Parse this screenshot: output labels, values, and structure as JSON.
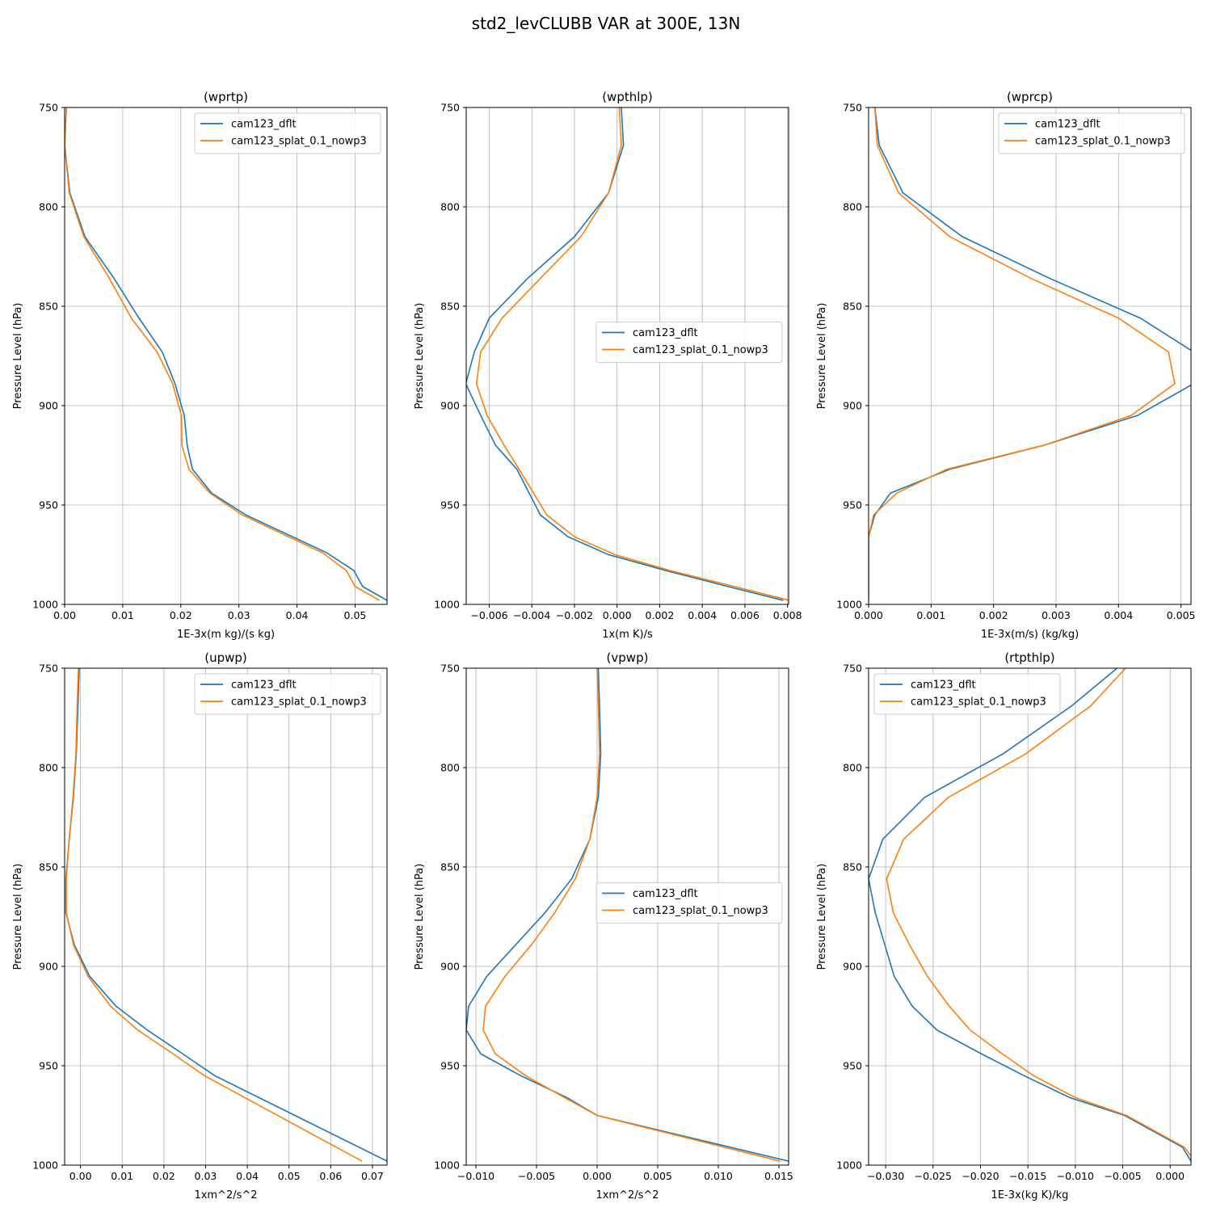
{
  "figure": {
    "suptitle": "std2_levCLUBB VAR at 300E, 13N"
  },
  "colors": {
    "cam123_dflt": "#1f77b4",
    "cam123_splat_0.1_nowp3": "#ff7f0e",
    "grid": "#b0b0b0"
  },
  "chart_data": [
    {
      "type": "line",
      "title": "(wprtp)",
      "xlabel": "1E-3x(m kg)/(s kg)",
      "ylabel": "Pressure Level (hPa)",
      "xlim": [
        0.0,
        0.0555
      ],
      "ylim": [
        1000,
        750
      ],
      "xticks": [
        0.0,
        0.01,
        0.02,
        0.03,
        0.04,
        0.05
      ],
      "xtick_labels": [
        "0.00",
        "0.01",
        "0.02",
        "0.03",
        "0.04",
        "0.05"
      ],
      "yticks": [
        750,
        800,
        850,
        900,
        950,
        1000
      ],
      "ytick_labels": [
        "750",
        "800",
        "850",
        "900",
        "950",
        "1000"
      ],
      "legend_loc": "upper right",
      "grid": true,
      "series": [
        {
          "name": "cam123_dflt",
          "x": [
            0.0003,
            0.0,
            0.0009,
            0.0035,
            0.0085,
            0.0128,
            0.0168,
            0.019,
            0.0206,
            0.0211,
            0.022,
            0.0253,
            0.0312,
            0.0451,
            0.0498,
            0.0513,
            0.0555
          ],
          "y": [
            750,
            769,
            793,
            815,
            836,
            856,
            873,
            889,
            905,
            920,
            932,
            944,
            955,
            974,
            983,
            991,
            998
          ]
        },
        {
          "name": "cam123_splat_0.1_nowp3",
          "x": [
            0.0003,
            0.0,
            0.0008,
            0.0033,
            0.0077,
            0.0115,
            0.0159,
            0.0186,
            0.0201,
            0.0202,
            0.0214,
            0.025,
            0.0306,
            0.0444,
            0.0485,
            0.05,
            0.0542
          ],
          "y": [
            750,
            769,
            793,
            815,
            836,
            856,
            873,
            889,
            905,
            920,
            932,
            944,
            955,
            974,
            983,
            991,
            998
          ]
        }
      ]
    },
    {
      "type": "line",
      "title": "(wpthlp)",
      "xlabel": "1x(m K)/s",
      "ylabel": "Pressure Level (hPa)",
      "xlim": [
        -0.00708,
        0.00805
      ],
      "ylim": [
        1000,
        750
      ],
      "xticks": [
        -0.006,
        -0.004,
        -0.002,
        0.0,
        0.002,
        0.004,
        0.006,
        0.008
      ],
      "xtick_labels": [
        "−0.006",
        "−0.004",
        "−0.002",
        "0.000",
        "0.002",
        "0.004",
        "0.006",
        "0.008"
      ],
      "yticks": [
        750,
        800,
        850,
        900,
        950,
        1000
      ],
      "ytick_labels": [
        "750",
        "800",
        "850",
        "900",
        "950",
        "1000"
      ],
      "legend_loc": "center right",
      "grid": true,
      "series": [
        {
          "name": "cam123_dflt",
          "x": [
            0.0002,
            0.0003,
            -0.0004,
            -0.002,
            -0.0042,
            -0.006,
            -0.0067,
            -0.0071,
            -0.0064,
            -0.0057,
            -0.0047,
            -0.0036,
            -0.0023,
            -0.0004,
            0.0023,
            0.0052,
            0.0078
          ],
          "y": [
            750,
            769,
            793,
            815,
            836,
            856,
            873,
            889,
            905,
            920,
            932,
            955,
            966,
            975,
            983,
            991,
            998
          ]
        },
        {
          "name": "cam123_splat_0.1_nowp3",
          "x": [
            0.0001,
            0.0002,
            -0.0004,
            -0.0017,
            -0.0036,
            -0.0054,
            -0.0064,
            -0.0066,
            -0.0061,
            -0.0053,
            -0.0046,
            -0.0033,
            -0.002,
            -0.0001,
            0.0025,
            0.0055,
            0.0081
          ],
          "y": [
            750,
            769,
            793,
            815,
            836,
            856,
            873,
            889,
            905,
            920,
            932,
            955,
            966,
            975,
            983,
            991,
            998
          ]
        }
      ]
    },
    {
      "type": "line",
      "title": "(wprcp)",
      "xlabel": "1E-3x(m/s) (kg/kg)",
      "ylabel": "Pressure Level (hPa)",
      "xlim": [
        0.0,
        0.00516
      ],
      "ylim": [
        1000,
        750
      ],
      "xticks": [
        0.0,
        0.001,
        0.002,
        0.003,
        0.004,
        0.005
      ],
      "xtick_labels": [
        "0.000",
        "0.001",
        "0.002",
        "0.003",
        "0.004",
        "0.005"
      ],
      "yticks": [
        750,
        800,
        850,
        900,
        950,
        1000
      ],
      "ytick_labels": [
        "750",
        "800",
        "850",
        "900",
        "950",
        "1000"
      ],
      "legend_loc": "upper right",
      "grid": true,
      "series": [
        {
          "name": "cam123_dflt",
          "x": [
            0.0001,
            0.00017,
            0.00055,
            0.0015,
            0.0029,
            0.00435,
            0.0052,
            0.0052,
            0.0043,
            0.0028,
            0.0013,
            0.00035,
            0.0001,
            0.0,
            0.0,
            0.0,
            0.0
          ],
          "y": [
            750,
            769,
            793,
            815,
            836,
            856,
            873,
            889,
            905,
            920,
            932,
            944,
            955,
            966,
            975,
            983,
            998
          ]
        },
        {
          "name": "cam123_splat_0.1_nowp3",
          "x": [
            0.0001,
            0.00014,
            0.00048,
            0.0013,
            0.0026,
            0.004,
            0.0048,
            0.0049,
            0.0042,
            0.0028,
            0.00125,
            0.00045,
            8e-05,
            0.0,
            0.0,
            0.0,
            0.0
          ],
          "y": [
            750,
            769,
            793,
            815,
            836,
            856,
            873,
            889,
            905,
            920,
            932,
            944,
            955,
            966,
            975,
            983,
            998
          ]
        }
      ]
    },
    {
      "type": "line",
      "title": "(upwp)",
      "xlabel": "1xm^2/s^2",
      "ylabel": "Pressure Level (hPa)",
      "xlim": [
        -0.0038,
        0.0735
      ],
      "ylim": [
        1000,
        750
      ],
      "xticks": [
        0.0,
        0.01,
        0.02,
        0.03,
        0.04,
        0.05,
        0.06,
        0.07
      ],
      "xtick_labels": [
        "0.00",
        "0.01",
        "0.02",
        "0.03",
        "0.04",
        "0.05",
        "0.06",
        "0.07"
      ],
      "yticks": [
        750,
        800,
        850,
        900,
        950,
        1000
      ],
      "ytick_labels": [
        "750",
        "800",
        "850",
        "900",
        "950",
        "1000"
      ],
      "legend_loc": "upper right",
      "grid": true,
      "series": [
        {
          "name": "cam123_dflt",
          "x": [
            -0.0003,
            -0.0006,
            -0.001,
            -0.0017,
            -0.0027,
            -0.0035,
            -0.0035,
            -0.0015,
            0.0022,
            0.0085,
            0.016,
            0.0245,
            0.0322,
            0.0735
          ],
          "y": [
            750,
            769,
            793,
            815,
            836,
            856,
            873,
            889,
            905,
            920,
            932,
            944,
            955,
            998
          ]
        },
        {
          "name": "cam123_splat_0.1_nowp3",
          "x": [
            -0.0005,
            -0.0008,
            -0.0011,
            -0.0018,
            -0.0027,
            -0.0034,
            -0.0034,
            -0.0017,
            0.0018,
            0.0072,
            0.0137,
            0.0222,
            0.0297,
            0.0675
          ],
          "y": [
            750,
            769,
            793,
            815,
            836,
            856,
            873,
            889,
            905,
            920,
            932,
            944,
            955,
            998
          ]
        }
      ]
    },
    {
      "type": "line",
      "title": "(vpwp)",
      "xlabel": "1xm^2/s^2",
      "ylabel": "Pressure Level (hPa)",
      "xlim": [
        -0.0108,
        0.0158
      ],
      "ylim": [
        1000,
        750
      ],
      "xticks": [
        -0.01,
        -0.005,
        0.0,
        0.005,
        0.01,
        0.015
      ],
      "xtick_labels": [
        "−0.010",
        "−0.005",
        "0.000",
        "0.005",
        "0.010",
        "0.015"
      ],
      "yticks": [
        750,
        800,
        850,
        900,
        950,
        1000
      ],
      "ytick_labels": [
        "750",
        "800",
        "850",
        "900",
        "950",
        "1000"
      ],
      "legend_loc": "center right",
      "grid": true,
      "series": [
        {
          "name": "cam123_dflt",
          "x": [
            0.0001,
            0.0002,
            0.0003,
            0.0001,
            -0.0006,
            -0.0021,
            -0.0043,
            -0.0067,
            -0.0091,
            -0.0106,
            -0.0108,
            -0.0096,
            -0.0063,
            -0.0025,
            0.0,
            0.0158
          ],
          "y": [
            750,
            769,
            793,
            815,
            836,
            856,
            873,
            889,
            905,
            920,
            932,
            944,
            955,
            966,
            975,
            998
          ]
        },
        {
          "name": "cam123_splat_0.1_nowp3",
          "x": [
            0.0,
            0.0001,
            0.0002,
            0.0,
            -0.0006,
            -0.0018,
            -0.0035,
            -0.0054,
            -0.0076,
            -0.0092,
            -0.0094,
            -0.0084,
            -0.0059,
            -0.0027,
            0.0,
            0.0151
          ],
          "y": [
            750,
            769,
            793,
            815,
            836,
            856,
            873,
            889,
            905,
            920,
            932,
            944,
            955,
            966,
            975,
            998
          ]
        }
      ]
    },
    {
      "type": "line",
      "title": "(rtpthlp)",
      "xlabel": "1E-3x(kg K)/kg",
      "ylabel": "Pressure Level (hPa)",
      "xlim": [
        -0.0318,
        0.0022
      ],
      "ylim": [
        1000,
        750
      ],
      "xticks": [
        -0.03,
        -0.025,
        -0.02,
        -0.015,
        -0.01,
        -0.005,
        0.0
      ],
      "xtick_labels": [
        "−0.030",
        "−0.025",
        "−0.020",
        "−0.015",
        "−0.010",
        "−0.005",
        "0.000"
      ],
      "yticks": [
        750,
        800,
        850,
        900,
        950,
        1000
      ],
      "ytick_labels": [
        "750",
        "800",
        "850",
        "900",
        "950",
        "1000"
      ],
      "legend_loc": "upper left",
      "grid": true,
      "series": [
        {
          "name": "cam123_dflt",
          "x": [
            -0.0056,
            -0.0104,
            -0.0176,
            -0.0259,
            -0.0303,
            -0.0318,
            -0.0311,
            -0.0301,
            -0.0291,
            -0.0272,
            -0.0246,
            -0.0199,
            -0.0154,
            -0.0106,
            -0.0048,
            0.0013,
            0.0022
          ],
          "y": [
            750,
            769,
            793,
            815,
            836,
            856,
            873,
            889,
            905,
            920,
            932,
            944,
            955,
            966,
            975,
            991,
            998
          ]
        },
        {
          "name": "cam123_splat_0.1_nowp3",
          "x": [
            -0.0047,
            -0.0084,
            -0.0152,
            -0.0234,
            -0.0281,
            -0.0299,
            -0.0292,
            -0.0275,
            -0.0256,
            -0.0233,
            -0.0211,
            -0.0177,
            -0.0144,
            -0.01,
            -0.0046,
            0.0015,
            0.0026
          ],
          "y": [
            750,
            769,
            793,
            815,
            836,
            856,
            873,
            889,
            905,
            920,
            932,
            944,
            955,
            966,
            975,
            991,
            998
          ]
        }
      ]
    }
  ]
}
